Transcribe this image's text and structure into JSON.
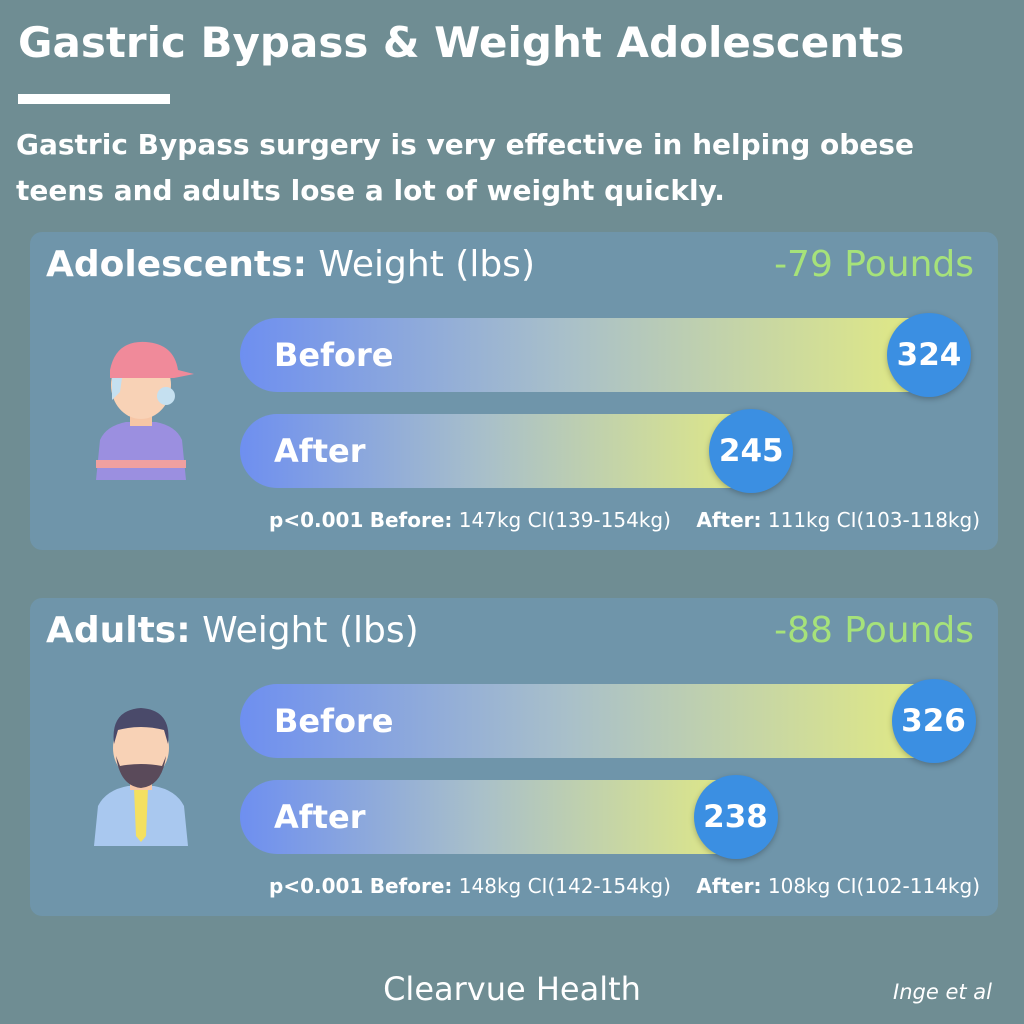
{
  "title": "Gastric Bypass & Weight Adolescents",
  "subtitle": "Gastric Bypass surgery is very effective in helping obese teens and adults lose a lot of weight quickly.",
  "chart_data": [
    {
      "type": "bar",
      "title": "Adolescents:",
      "subtitle": "Weight (lbs)",
      "annotation": "-79 Pounds",
      "categories": [
        "Before",
        "After"
      ],
      "values": [
        324,
        245
      ],
      "notes": {
        "p": "p<0.001",
        "before_label": "Before:",
        "before": "147kg CI(139-154kg)",
        "after_label": "After:",
        "after": "111kg CI(103-118kg)"
      }
    },
    {
      "type": "bar",
      "title": "Adults:",
      "subtitle": "Weight (lbs)",
      "annotation": "-88 Pounds",
      "categories": [
        "Before",
        "After"
      ],
      "values": [
        326,
        238
      ],
      "notes": {
        "p": "p<0.001",
        "before_label": "Before:",
        "before": "148kg CI(142-154kg)",
        "after_label": "After:",
        "after": "108kg CI(102-114kg)"
      }
    }
  ],
  "brand": "Clearvue Health",
  "citation": "Inge et al"
}
